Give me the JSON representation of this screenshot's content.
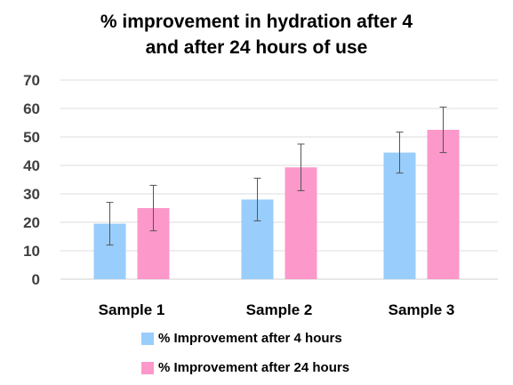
{
  "chart_data": {
    "type": "bar",
    "title_lines": [
      "% improvement in hydration after 4",
      "and after 24 hours of use"
    ],
    "categories": [
      "Sample 1",
      "Sample 2",
      "Sample 3"
    ],
    "series": [
      {
        "name": "% Improvement after 4 hours",
        "color": "#99cdfb",
        "values": [
          19.5,
          28,
          44.5
        ],
        "error": [
          7.5,
          7.5,
          7.2
        ]
      },
      {
        "name": "% Improvement after 24 hours",
        "color": "#fc98ca",
        "values": [
          25,
          39.3,
          52.5
        ],
        "error": [
          8,
          8.2,
          8
        ]
      }
    ],
    "yticks": [
      0,
      10,
      20,
      30,
      40,
      50,
      60,
      70
    ],
    "ylim": [
      0,
      70
    ],
    "grid": true,
    "legend_position": "bottom"
  }
}
